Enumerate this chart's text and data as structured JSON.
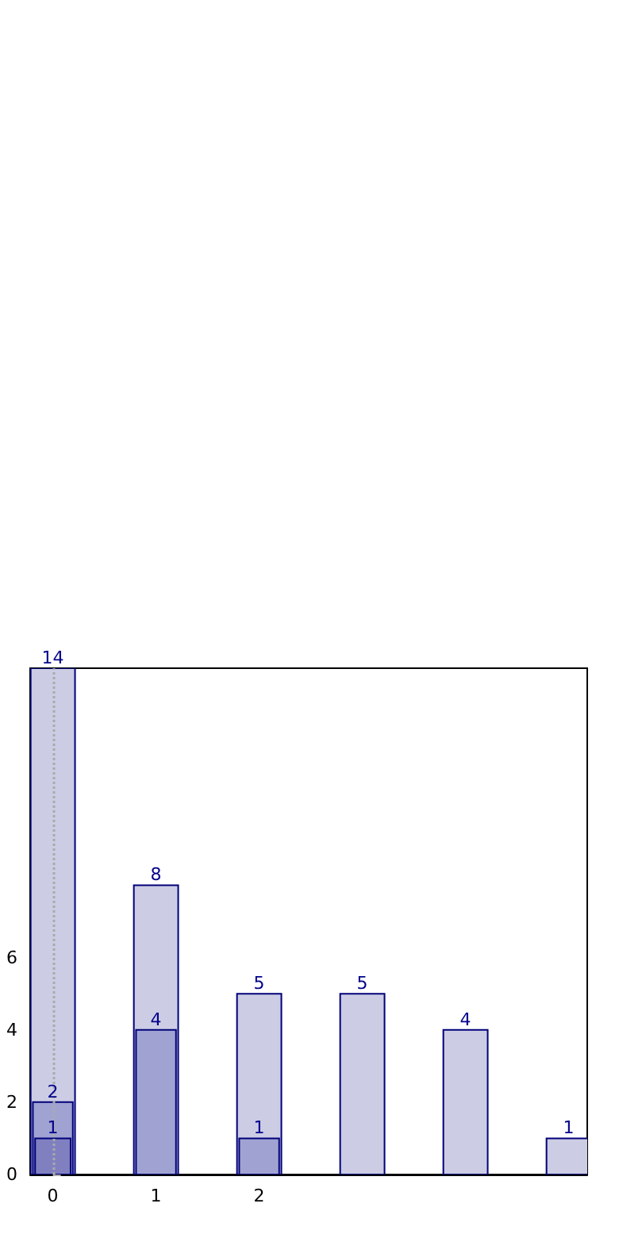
{
  "chart_data": {
    "type": "bar",
    "x": [
      0,
      1,
      2,
      3,
      4,
      5
    ],
    "series": [
      {
        "color": "#ccccE4",
        "values": [
          14,
          8,
          5,
          5,
          4,
          1
        ]
      },
      {
        "color": "#a0a3d2",
        "values": [
          2,
          4,
          1,
          null,
          null,
          null
        ]
      },
      {
        "color": "#8080c0",
        "values": [
          1,
          null,
          null,
          null,
          null,
          null
        ]
      }
    ],
    "xlim": [
      -0.22,
      5.18
    ],
    "xticks": [
      0,
      1,
      2
    ],
    "ylim": [
      0,
      14
    ],
    "yticks": [
      0,
      2,
      4,
      6
    ],
    "grid": false,
    "data_labels": true,
    "ref_lines": [
      {
        "axis": "x",
        "value": 0,
        "color": "#aaaaaa",
        "line_style": "dotted"
      }
    ]
  }
}
